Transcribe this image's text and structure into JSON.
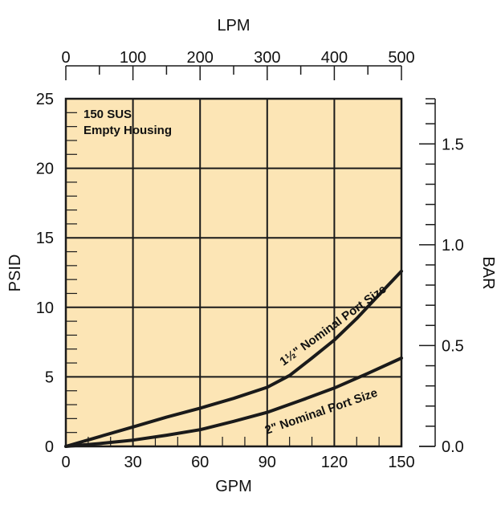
{
  "chart_data": {
    "type": "line",
    "title": "",
    "annotation": [
      "150 SUS",
      "Empty Housing"
    ],
    "xlabel": "GPM",
    "ylabel": "PSID",
    "x2label": "LPM",
    "y2label": "BAR",
    "xlim": [
      0,
      150
    ],
    "ylim": [
      0,
      25
    ],
    "x2lim": [
      0,
      500
    ],
    "y2lim": [
      0.0,
      1.724
    ],
    "xticks": [
      "0",
      "30",
      "60",
      "90",
      "120",
      "150"
    ],
    "yticks": [
      "0",
      "5",
      "10",
      "15",
      "20",
      "25"
    ],
    "x2ticks": [
      "0",
      "100",
      "200",
      "300",
      "400",
      "500"
    ],
    "y2ticks": [
      "0.0",
      "0.5",
      "1.0",
      "1.5"
    ],
    "grid": true,
    "plot_background": "#FCE5B5",
    "line_color": "#1a1a1a",
    "series": [
      {
        "name": "1½\" Nominal Port Size",
        "x": [
          0,
          15,
          30,
          45,
          60,
          75,
          90,
          100,
          110,
          120,
          130,
          140,
          150
        ],
        "y": [
          0,
          0.7,
          1.4,
          2.1,
          2.75,
          3.45,
          4.25,
          5.1,
          6.35,
          7.65,
          9.2,
          10.9,
          12.6
        ]
      },
      {
        "name": "2\" Nominal Port Size",
        "x": [
          0,
          15,
          30,
          45,
          60,
          75,
          90,
          105,
          120,
          135,
          150
        ],
        "y": [
          0,
          0.2,
          0.45,
          0.8,
          1.2,
          1.8,
          2.45,
          3.3,
          4.2,
          5.25,
          6.35
        ]
      }
    ]
  }
}
